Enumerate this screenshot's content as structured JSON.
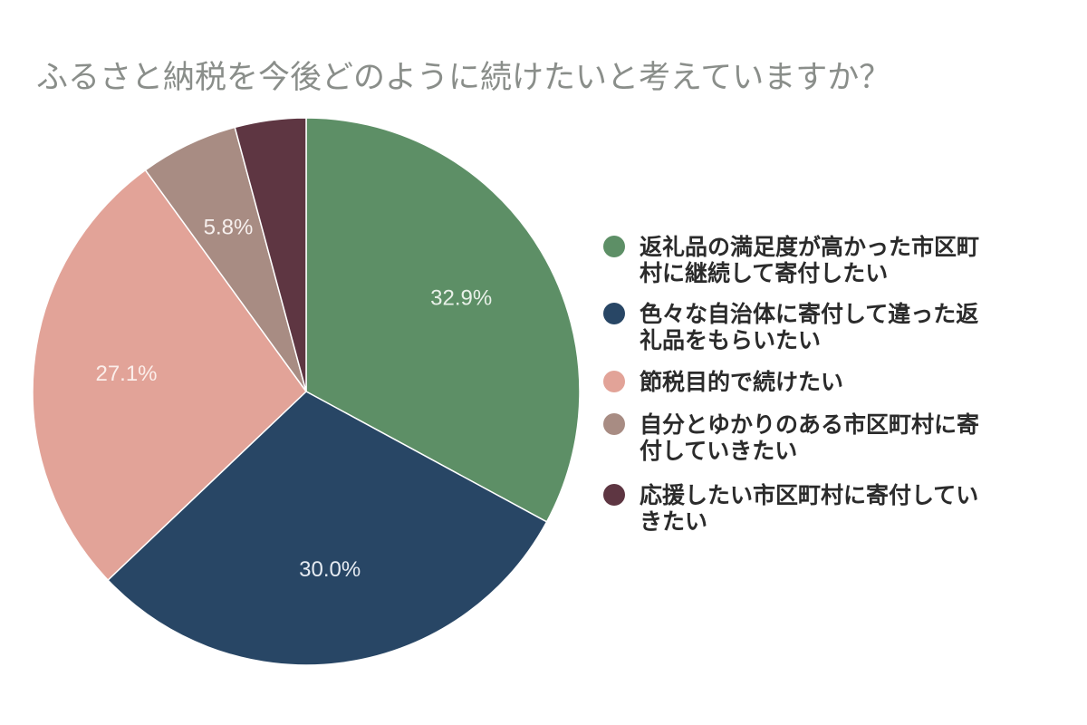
{
  "chart_data": {
    "type": "pie",
    "title": "ふるさと納税を今後どのように続けたいと考えていますか？",
    "legend_position": "right",
    "slices": [
      {
        "label": "返礼品の満足度が高かった市区町村に継続して寄付したい",
        "legend_lines": [
          "返礼品の満足度が高かった市区町",
          "村に継続して寄付したい"
        ],
        "value": 32.9,
        "value_label": "32.9%",
        "color": "#5d8f66",
        "label_color": "#e8f0e8"
      },
      {
        "label": "色々な自治体に寄付して違った返礼品をもらいたい",
        "legend_lines": [
          "色々な自治体に寄付して違った返",
          "礼品をもらいたい"
        ],
        "value": 30.0,
        "value_label": "30.0%",
        "color": "#284665",
        "label_color": "#e6ebf2"
      },
      {
        "label": "節税目的で続けたい",
        "legend_lines": [
          "節税目的で続けたい"
        ],
        "value": 27.1,
        "value_label": "27.1%",
        "color": "#e2a398",
        "label_color": "#fbeeea"
      },
      {
        "label": "自分とゆかりのある市区町村に寄付していきたい",
        "legend_lines": [
          "自分とゆかりのある市区町村に寄",
          "付していきたい"
        ],
        "value": 5.8,
        "value_label": "5.8%",
        "color": "#a88c83",
        "label_color": "#f7f0ee"
      },
      {
        "label": "応援したい市区町村に寄付していきたい",
        "legend_lines": [
          "応援したい市区町村に寄付してい",
          "きたい"
        ],
        "value": 4.2,
        "value_label": "",
        "color": "#5e3642",
        "label_color": "#ffffff"
      }
    ]
  }
}
